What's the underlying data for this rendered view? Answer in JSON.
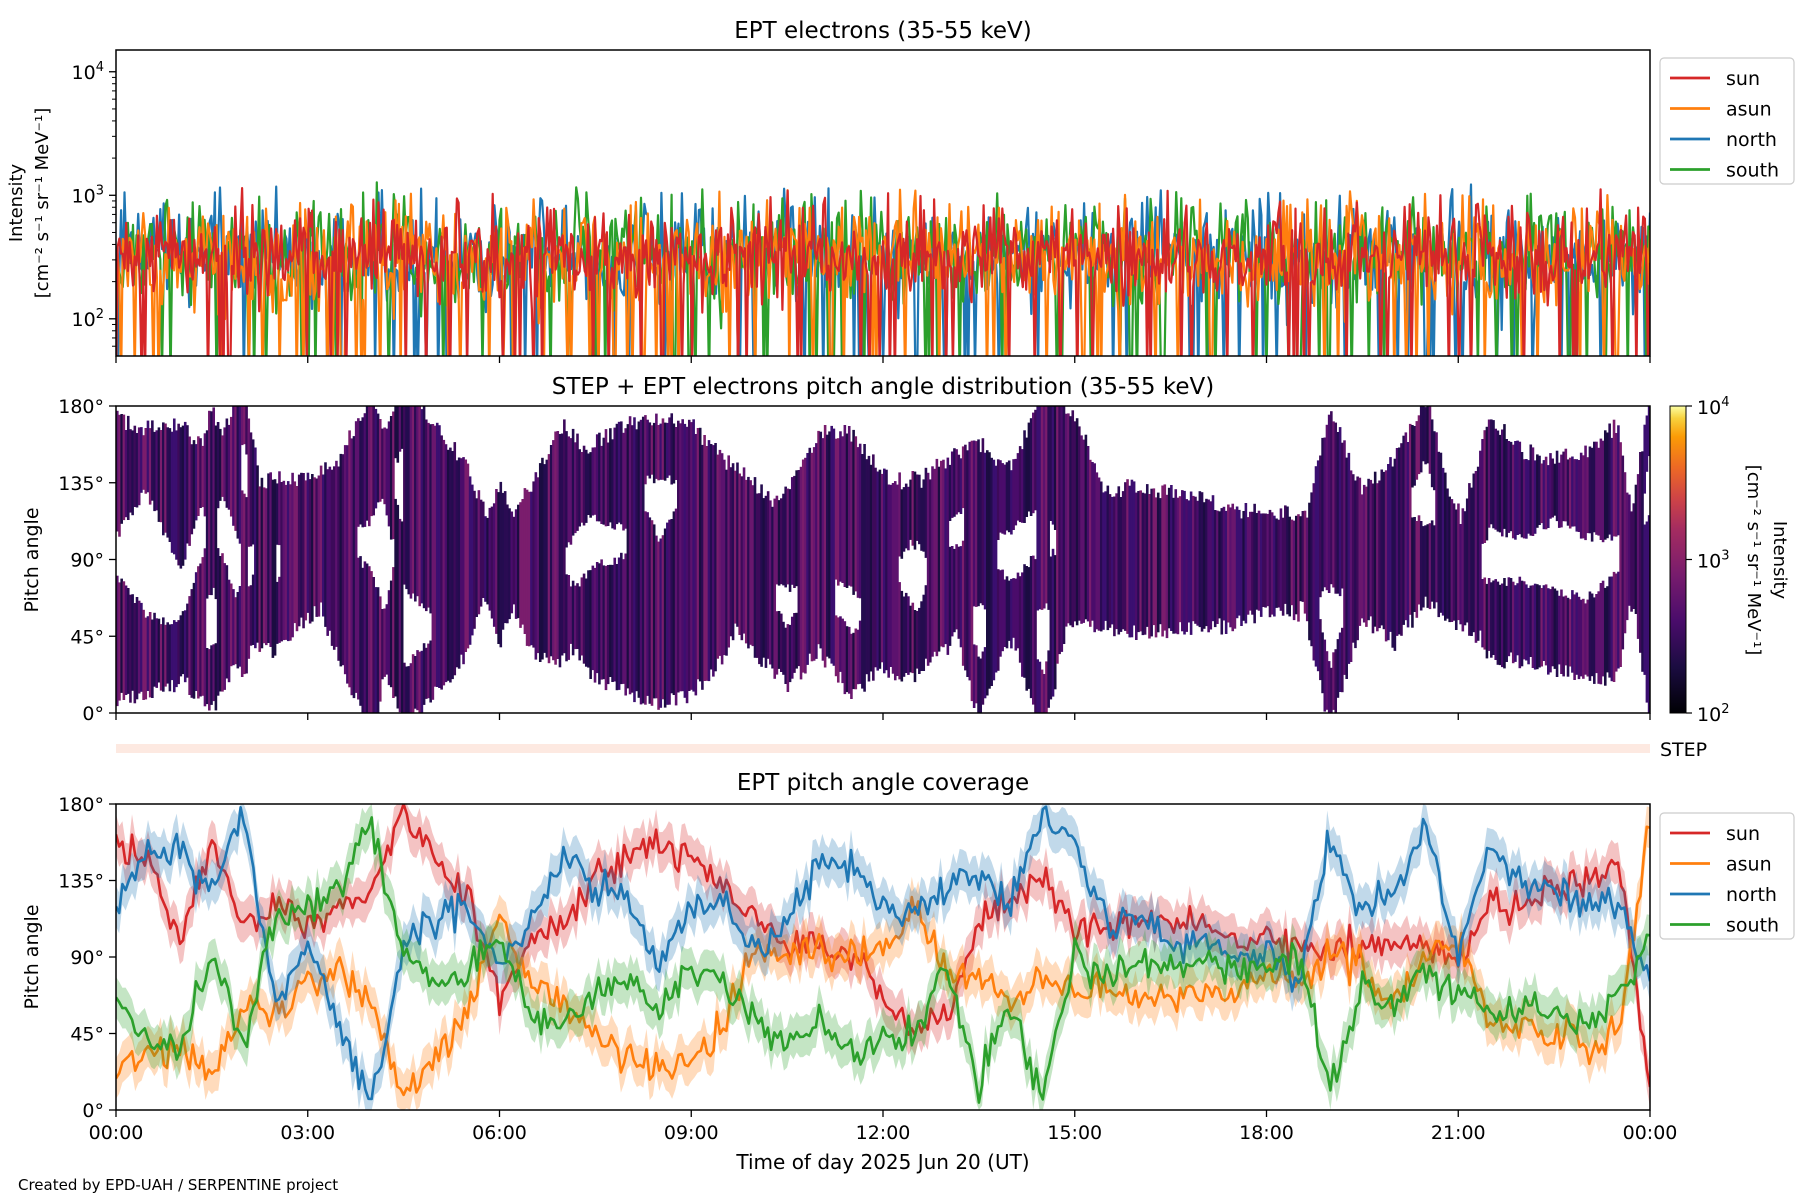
{
  "footer": {
    "credit": "Created by EPD-UAH / SERPENTINE project"
  },
  "colors": {
    "sun": "#d62728",
    "asun": "#ff7f0e",
    "north": "#1f77b4",
    "south": "#2ca02c",
    "step_band": "#fde9e1"
  },
  "legend": {
    "items": [
      {
        "key": "sun",
        "label": "sun",
        "color": "#d62728"
      },
      {
        "key": "asun",
        "label": "asun",
        "color": "#ff7f0e"
      },
      {
        "key": "north",
        "label": "north",
        "color": "#1f77b4"
      },
      {
        "key": "south",
        "label": "south",
        "color": "#2ca02c"
      }
    ]
  },
  "shared_xaxis": {
    "ticks": [
      "00:00",
      "03:00",
      "06:00",
      "09:00",
      "12:00",
      "15:00",
      "18:00",
      "21:00",
      "00:00"
    ],
    "range_hours": [
      0,
      24
    ],
    "label": "Time of day 2025 Jun 20 (UT)"
  },
  "chart_data": [
    {
      "type": "line",
      "title": "EPT electrons (35-55 keV)",
      "ylabel_line1": "Intensity",
      "ylabel_line2": "[cm⁻² s⁻¹ sr⁻¹ MeV⁻¹]",
      "yscale": "log",
      "ylim": [
        50,
        15000
      ],
      "yticks": [
        {
          "value": 100,
          "base": "10",
          "exp": "2"
        },
        {
          "value": 1000,
          "base": "10",
          "exp": "3"
        },
        {
          "value": 10000,
          "base": "10",
          "exp": "4"
        }
      ],
      "xlim": [
        0,
        24
      ],
      "series": [
        {
          "name": "north",
          "color": "#1f77b4",
          "typical": 330,
          "spread": 0.45,
          "spikes": 14
        },
        {
          "name": "south",
          "color": "#2ca02c",
          "typical": 340,
          "spread": 0.45,
          "spikes": 16
        },
        {
          "name": "asun",
          "color": "#ff7f0e",
          "typical": 320,
          "spread": 0.45,
          "spikes": 14
        },
        {
          "name": "sun",
          "color": "#d62728",
          "typical": 330,
          "spread": 0.4,
          "spikes": 12
        }
      ],
      "legend_position": "outside-right"
    },
    {
      "type": "heatmap",
      "title": "STEP + EPT electrons pitch angle distribution (35-55 keV)",
      "ylabel": "Pitch angle",
      "ylim": [
        0,
        180
      ],
      "yticks": [
        "0°",
        "45°",
        "90°",
        "135°",
        "180°"
      ],
      "xlim": [
        0,
        24
      ],
      "colorbar": {
        "label_line1": "Intensity",
        "label_line2": "[cm⁻² s⁻¹ sr⁻¹ MeV⁻¹]",
        "scale": "log",
        "range": [
          100,
          10000
        ],
        "colormap": "inferno",
        "ticks": [
          {
            "value": 100,
            "base": "10",
            "exp": "2"
          },
          {
            "value": 1000,
            "base": "10",
            "exp": "3"
          },
          {
            "value": 10000,
            "base": "10",
            "exp": "4"
          }
        ]
      },
      "step_band_label": "STEP",
      "typical_intensity": 300
    },
    {
      "type": "line",
      "title": "EPT pitch angle coverage",
      "ylabel": "Pitch angle",
      "ylim": [
        0,
        180
      ],
      "yticks": [
        "0°",
        "45°",
        "90°",
        "135°",
        "180°"
      ],
      "xlim": [
        0,
        24
      ],
      "series": [
        {
          "name": "sun",
          "color": "#d62728",
          "x": [
            0,
            0.5,
            1,
            1.5,
            2,
            2.5,
            3,
            3.5,
            4,
            4.5,
            5,
            5.5,
            6,
            6.5,
            7,
            7.5,
            8,
            8.5,
            9,
            9.5,
            10,
            10.5,
            11,
            11.5,
            12,
            12.5,
            13,
            13.5,
            14,
            14.5,
            15,
            15.5,
            16,
            16.5,
            17,
            17.5,
            18,
            18.5,
            19,
            19.5,
            20,
            20.5,
            21,
            21.5,
            22,
            22.5,
            23,
            23.5,
            24
          ],
          "y": [
            155,
            145,
            100,
            160,
            110,
            120,
            110,
            118,
            130,
            175,
            150,
            125,
            60,
            105,
            110,
            140,
            150,
            155,
            150,
            130,
            115,
            95,
            100,
            90,
            70,
            45,
            55,
            110,
            125,
            140,
            105,
            110,
            110,
            112,
            108,
            100,
            100,
            98,
            95,
            98,
            100,
            95,
            85,
            125,
            120,
            130,
            135,
            150,
            15
          ]
        },
        {
          "name": "asun",
          "color": "#ff7f0e",
          "x": [
            0,
            0.5,
            1,
            1.5,
            2,
            2.5,
            3,
            3.5,
            4,
            4.5,
            5,
            5.5,
            6,
            6.5,
            7,
            7.5,
            8,
            8.5,
            9,
            9.5,
            10,
            10.5,
            11,
            11.5,
            12,
            12.5,
            13,
            13.5,
            14,
            14.5,
            15,
            15.5,
            16,
            16.5,
            17,
            17.5,
            18,
            18.5,
            19,
            19.5,
            20,
            20.5,
            21,
            21.5,
            22,
            22.5,
            23,
            23.5,
            24
          ],
          "y": [
            25,
            30,
            40,
            20,
            60,
            55,
            75,
            85,
            65,
            10,
            30,
            55,
            115,
            75,
            65,
            40,
            30,
            25,
            30,
            50,
            95,
            90,
            95,
            90,
            95,
            120,
            80,
            80,
            60,
            80,
            70,
            70,
            65,
            68,
            70,
            70,
            80,
            80,
            90,
            85,
            60,
            90,
            100,
            50,
            50,
            45,
            40,
            40,
            170
          ]
        },
        {
          "name": "north",
          "color": "#1f77b4",
          "x": [
            0,
            0.5,
            1,
            1.5,
            2,
            2.5,
            3,
            3.5,
            4,
            4.5,
            5,
            5.5,
            6,
            6.5,
            7,
            7.5,
            8,
            8.5,
            9,
            9.5,
            10,
            10.5,
            11,
            11.5,
            12,
            12.5,
            13,
            13.5,
            14,
            14.5,
            15,
            15.5,
            16,
            16.5,
            17,
            17.5,
            18,
            18.5,
            19,
            19.5,
            20,
            20.5,
            21,
            21.5,
            22,
            22.5,
            23,
            23.5,
            24
          ],
          "y": [
            120,
            150,
            150,
            130,
            175,
            60,
            100,
            50,
            5,
            95,
            115,
            120,
            85,
            115,
            150,
            130,
            125,
            85,
            115,
            120,
            90,
            110,
            145,
            145,
            120,
            115,
            130,
            140,
            120,
            175,
            155,
            110,
            115,
            100,
            95,
            90,
            95,
            75,
            160,
            110,
            130,
            165,
            90,
            155,
            135,
            130,
            120,
            120,
            80
          ]
        },
        {
          "name": "south",
          "color": "#2ca02c",
          "x": [
            0,
            0.5,
            1,
            1.5,
            2,
            2.5,
            3,
            3.5,
            4,
            4.5,
            5,
            5.5,
            6,
            6.5,
            7,
            7.5,
            8,
            8.5,
            9,
            9.5,
            10,
            10.5,
            11,
            11.5,
            12,
            12.5,
            13,
            13.5,
            14,
            14.5,
            15,
            15.5,
            16,
            16.5,
            17,
            17.5,
            18,
            18.5,
            19,
            19.5,
            20,
            20.5,
            21,
            21.5,
            22,
            22.5,
            23,
            23.5,
            24
          ],
          "y": [
            65,
            40,
            35,
            90,
            40,
            115,
            120,
            130,
            170,
            90,
            75,
            80,
            100,
            55,
            50,
            70,
            75,
            60,
            80,
            75,
            55,
            35,
            55,
            30,
            45,
            40,
            85,
            15,
            65,
            5,
            90,
            80,
            85,
            88,
            90,
            85,
            85,
            90,
            10,
            75,
            60,
            85,
            70,
            60,
            60,
            55,
            50,
            65,
            100
          ]
        }
      ],
      "band_halfwidth_deg": 12,
      "legend_position": "outside-right"
    }
  ]
}
